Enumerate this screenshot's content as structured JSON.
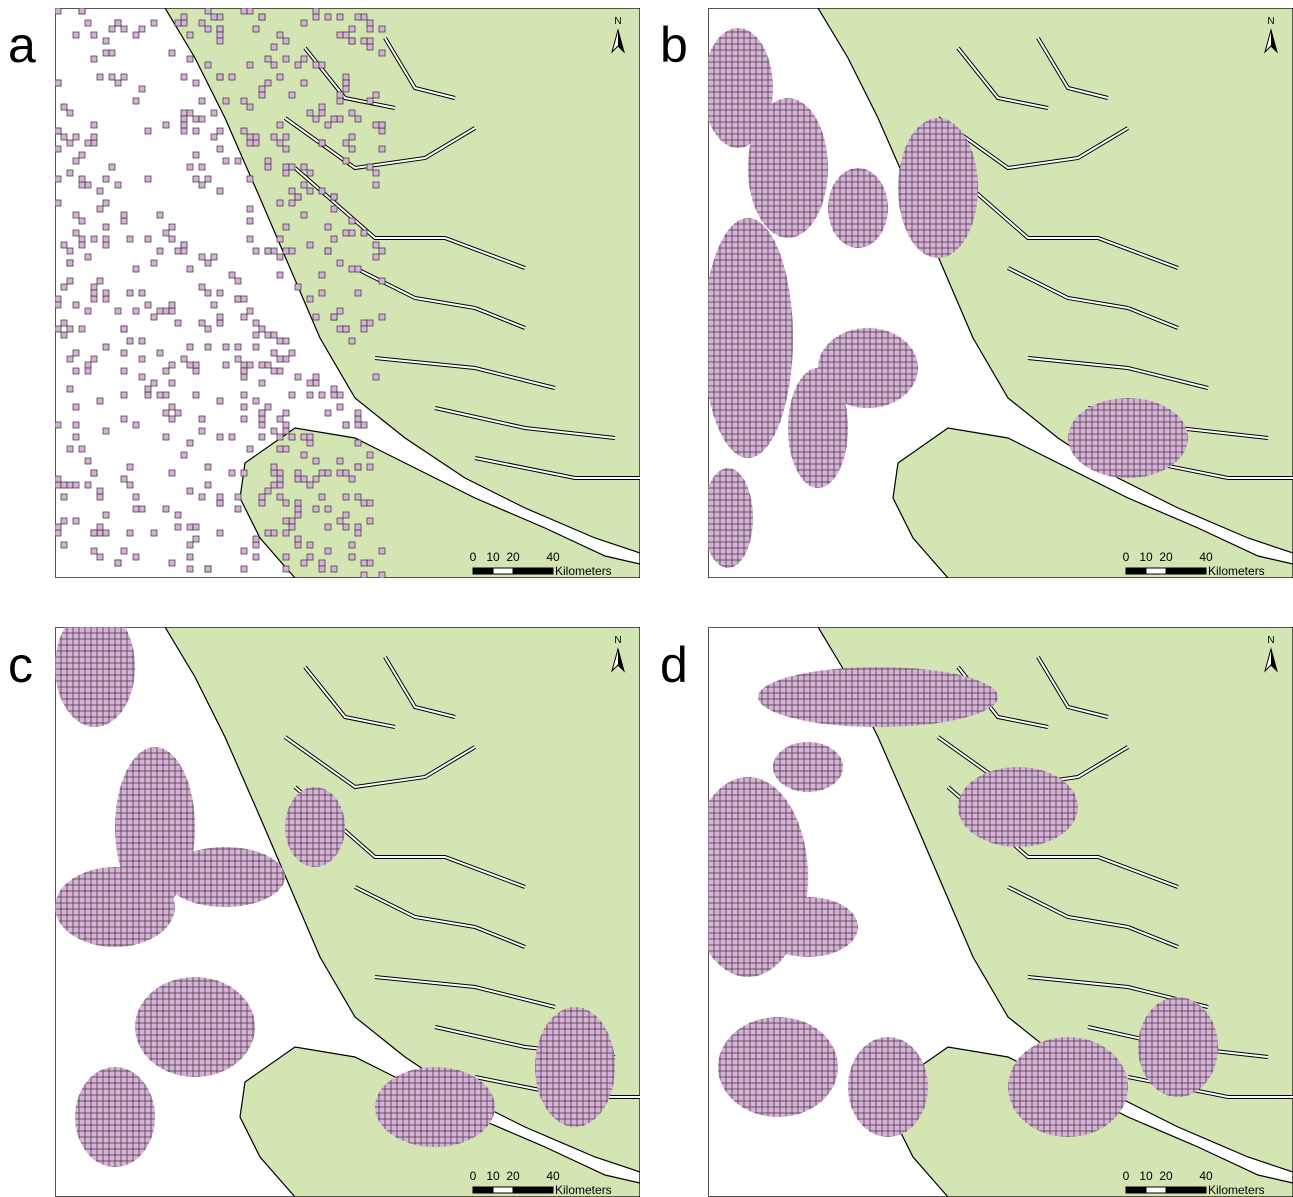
{
  "panels": [
    {
      "label": "a",
      "north": "N",
      "scale": {
        "ticks": [
          0,
          10,
          20,
          40
        ],
        "unit": "Kilometers"
      }
    },
    {
      "label": "b",
      "north": "N",
      "scale": {
        "ticks": [
          0,
          10,
          20,
          40
        ],
        "unit": "Kilometers"
      }
    },
    {
      "label": "c",
      "north": "N",
      "scale": {
        "ticks": [
          0,
          10,
          20,
          40
        ],
        "unit": "Kilometers"
      }
    },
    {
      "label": "d",
      "north": "N",
      "scale": {
        "ticks": [
          0,
          10,
          20,
          40
        ],
        "unit": "Kilometers"
      }
    }
  ]
}
